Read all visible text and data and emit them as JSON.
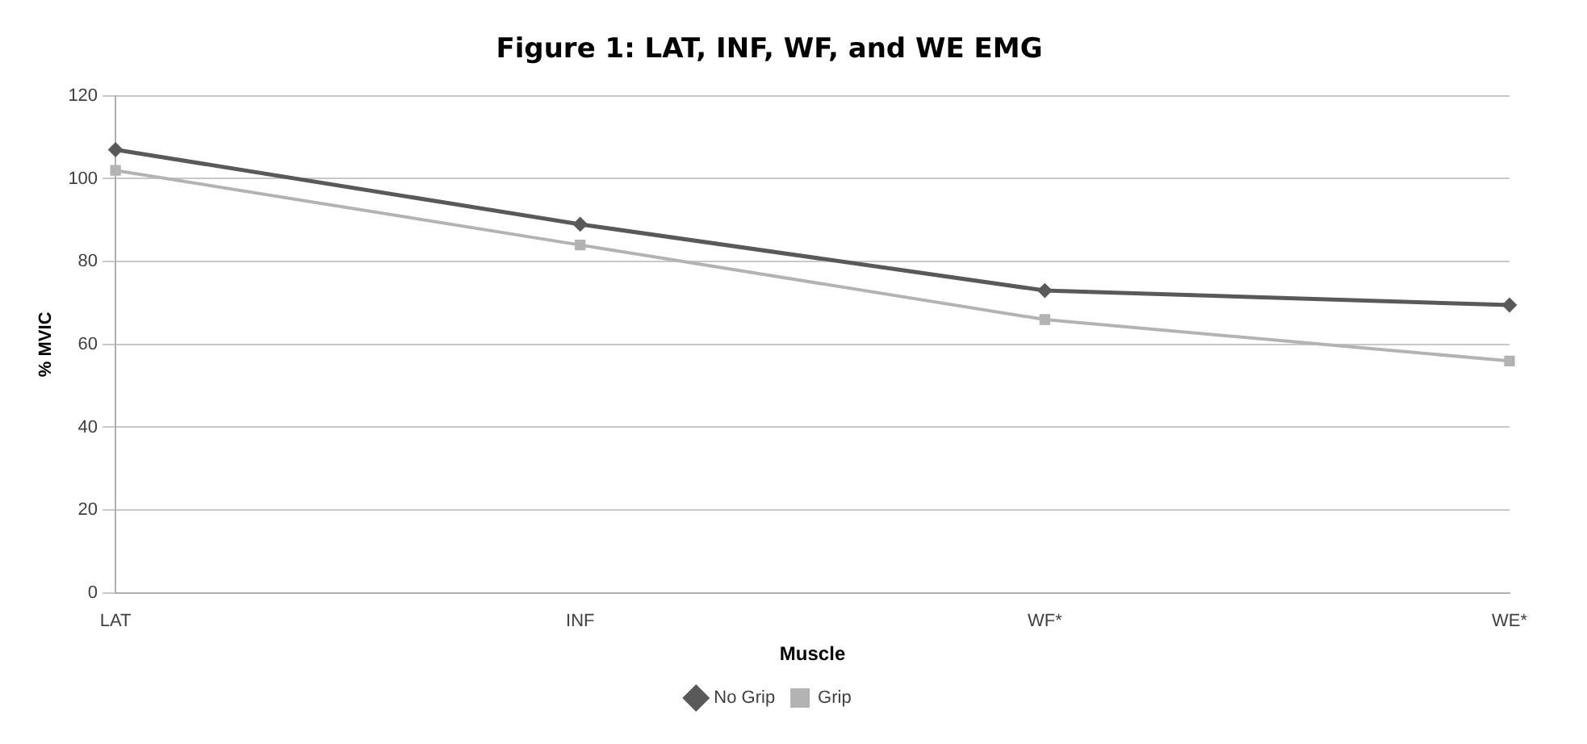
{
  "chart_data": {
    "type": "line",
    "title": "Figure 1: LAT, INF, WF, and WE EMG",
    "xlabel": "Muscle",
    "ylabel": "% MVIC",
    "categories": [
      "LAT",
      "INF",
      "WF*",
      "WE*"
    ],
    "series": [
      {
        "name": "No Grip",
        "color": "#595959",
        "values": [
          107,
          89,
          73,
          69.5
        ],
        "marker": "diamond"
      },
      {
        "name": "Grip",
        "color": "#b3b3b3",
        "values": [
          102,
          84,
          66,
          56
        ],
        "marker": "square"
      }
    ],
    "ylim": [
      0,
      120
    ],
    "yticks": [
      0,
      20,
      40,
      60,
      80,
      100,
      120
    ],
    "grid": "y",
    "legend": "bottom",
    "line_style": "solid"
  }
}
